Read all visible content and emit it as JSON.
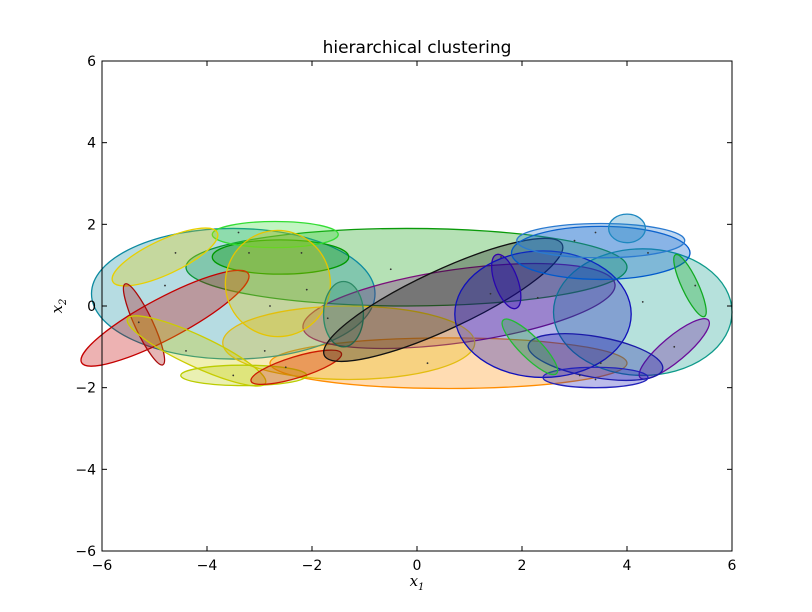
{
  "chart_data": {
    "type": "scatter",
    "title": "hierarchical clustering",
    "xlabel": "x",
    "xlabel_sub": "1",
    "ylabel": "x",
    "ylabel_sub": "2",
    "xlim": [
      -6,
      6
    ],
    "ylim": [
      -6,
      6
    ],
    "xticks": [
      -6,
      -4,
      -2,
      0,
      2,
      4,
      6
    ],
    "yticks": [
      -6,
      -4,
      -2,
      0,
      2,
      4,
      6
    ],
    "grid": false,
    "legend": "none",
    "points": [
      {
        "x": -5.3,
        "y": -0.4
      },
      {
        "x": -4.8,
        "y": 0.5
      },
      {
        "x": -4.6,
        "y": 1.3
      },
      {
        "x": -4.4,
        "y": -1.1
      },
      {
        "x": -3.5,
        "y": -1.7
      },
      {
        "x": -3.4,
        "y": 1.8
      },
      {
        "x": -3.2,
        "y": 1.3
      },
      {
        "x": -2.9,
        "y": -1.1
      },
      {
        "x": -2.8,
        "y": 0.0
      },
      {
        "x": -2.5,
        "y": -1.5
      },
      {
        "x": -2.2,
        "y": 1.3
      },
      {
        "x": -2.1,
        "y": 0.4
      },
      {
        "x": -1.7,
        "y": -0.3
      },
      {
        "x": -0.5,
        "y": 0.9
      },
      {
        "x": 0.2,
        "y": -1.4
      },
      {
        "x": 1.4,
        "y": 0.3
      },
      {
        "x": 1.6,
        "y": 1.2
      },
      {
        "x": 2.3,
        "y": 0.2
      },
      {
        "x": 3.0,
        "y": 1.6
      },
      {
        "x": 3.1,
        "y": -1.7
      },
      {
        "x": 3.4,
        "y": 1.8
      },
      {
        "x": 3.4,
        "y": -1.8
      },
      {
        "x": 3.5,
        "y": -1.4
      },
      {
        "x": 4.3,
        "y": 0.1
      },
      {
        "x": 4.4,
        "y": 1.3
      },
      {
        "x": 4.9,
        "y": -1.0
      },
      {
        "x": 5.3,
        "y": 0.5
      }
    ],
    "ellipses": [
      {
        "cx": 0.6,
        "cy": -1.4,
        "rx": 3.4,
        "ry": 0.62,
        "angle": 0,
        "color": "#ff8c00"
      },
      {
        "cx": -0.2,
        "cy": 0.95,
        "rx": 4.2,
        "ry": 0.95,
        "angle": 0,
        "color": "#0a9a0a"
      },
      {
        "cx": -3.5,
        "cy": 0.3,
        "rx": 2.7,
        "ry": 1.6,
        "angle": 0,
        "color": "#0c8aa0"
      },
      {
        "cx": 0.8,
        "cy": 0.0,
        "rx": 3.0,
        "ry": 0.9,
        "angle": 8,
        "color": "#7a0f7a"
      },
      {
        "cx": -1.3,
        "cy": -0.9,
        "rx": 2.4,
        "ry": 0.9,
        "angle": 0,
        "color": "#e3bd10"
      },
      {
        "cx": 4.3,
        "cy": -0.15,
        "rx": 1.7,
        "ry": 1.55,
        "angle": 0,
        "color": "#0e9a8a"
      },
      {
        "cx": -2.6,
        "cy": 1.2,
        "rx": 1.3,
        "ry": 0.42,
        "angle": 0,
        "color": "#009900"
      },
      {
        "cx": -2.7,
        "cy": 1.75,
        "rx": 1.2,
        "ry": 0.32,
        "angle": 0,
        "color": "#33dd33"
      },
      {
        "cx": -4.8,
        "cy": 1.2,
        "rx": 1.1,
        "ry": 0.42,
        "angle": 25,
        "color": "#e8d000"
      },
      {
        "cx": -4.8,
        "cy": -0.3,
        "rx": 1.8,
        "ry": 0.5,
        "angle": 28,
        "color": "#c40000"
      },
      {
        "cx": -5.2,
        "cy": -0.45,
        "rx": 0.85,
        "ry": 0.22,
        "angle": -65,
        "color": "#aa0a0a"
      },
      {
        "cx": -4.2,
        "cy": -1.1,
        "rx": 1.45,
        "ry": 0.38,
        "angle": -25,
        "color": "#cccc00"
      },
      {
        "cx": -3.3,
        "cy": -1.7,
        "rx": 1.2,
        "ry": 0.25,
        "angle": 0,
        "color": "#bbcc00"
      },
      {
        "cx": -2.3,
        "cy": -1.5,
        "rx": 0.9,
        "ry": 0.26,
        "angle": 17,
        "color": "#cc1a00"
      },
      {
        "cx": -2.65,
        "cy": 0.55,
        "rx": 1.0,
        "ry": 1.3,
        "angle": 5,
        "color": "#e6c500"
      },
      {
        "cx": -1.4,
        "cy": -0.2,
        "rx": 0.38,
        "ry": 0.8,
        "angle": 0,
        "color": "#2d8a66"
      },
      {
        "cx": 0.5,
        "cy": 0.15,
        "rx": 2.5,
        "ry": 0.72,
        "angle": 25,
        "color": "#111111"
      },
      {
        "cx": 1.7,
        "cy": 0.6,
        "rx": 0.22,
        "ry": 0.7,
        "angle": 20,
        "color": "#3300aa"
      },
      {
        "cx": 2.4,
        "cy": -0.2,
        "rx": 1.68,
        "ry": 1.55,
        "angle": 0,
        "color": "#1010bb"
      },
      {
        "cx": 3.5,
        "cy": 1.3,
        "rx": 1.7,
        "ry": 0.65,
        "angle": 0,
        "color": "#0059cc"
      },
      {
        "cx": 3.5,
        "cy": 1.6,
        "rx": 1.6,
        "ry": 0.42,
        "angle": 0,
        "color": "#2a7ad0"
      },
      {
        "cx": 4.0,
        "cy": 1.9,
        "rx": 0.35,
        "ry": 0.35,
        "angle": 0,
        "color": "#1e88c0"
      },
      {
        "cx": 5.2,
        "cy": 0.5,
        "rx": 0.65,
        "ry": 0.2,
        "angle": -65,
        "color": "#11aa22"
      },
      {
        "cx": 4.9,
        "cy": -1.05,
        "rx": 0.85,
        "ry": 0.3,
        "angle": 40,
        "color": "#6a0d9a"
      },
      {
        "cx": 3.4,
        "cy": -1.25,
        "rx": 1.3,
        "ry": 0.5,
        "angle": -10,
        "color": "#1a1aa8"
      },
      {
        "cx": 3.4,
        "cy": -1.75,
        "rx": 1.0,
        "ry": 0.25,
        "angle": 0,
        "color": "#2222bb"
      },
      {
        "cx": 2.15,
        "cy": -1.0,
        "rx": 0.72,
        "ry": 0.26,
        "angle": -45,
        "color": "#22bb33"
      }
    ]
  }
}
